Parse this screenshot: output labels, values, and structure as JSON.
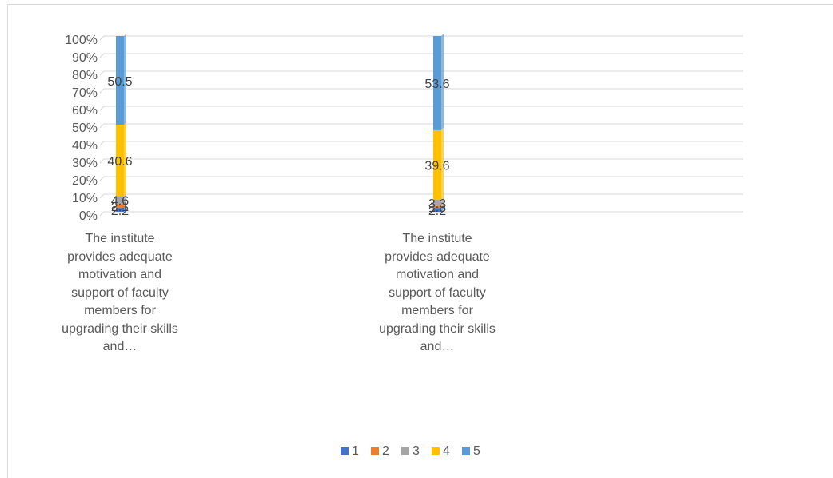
{
  "chart_data": {
    "type": "stacked_bar",
    "categories": [
      "The institute provides adequate motivation and support of faculty members for upgrading their skills and…",
      "The institute provides adequate motivation and support of faculty members for upgrading their skills and…"
    ],
    "series": [
      {
        "name": "1",
        "color": "#4472c4",
        "values": [
          2.2,
          2.2
        ]
      },
      {
        "name": "2",
        "color": "#ed7d31",
        "values": [
          2.1,
          1.3
        ]
      },
      {
        "name": "3",
        "color": "#a5a5a5",
        "values": [
          4.6,
          3.3
        ]
      },
      {
        "name": "4",
        "color": "#ffc000",
        "values": [
          40.6,
          39.6
        ]
      },
      {
        "name": "5",
        "color": "#5b9bd5",
        "values": [
          50.5,
          53.6
        ]
      }
    ],
    "ylim": [
      0,
      100
    ],
    "yticks": [
      {
        "value": 0,
        "label": "0%"
      },
      {
        "value": 10,
        "label": "10%"
      },
      {
        "value": 20,
        "label": "20%"
      },
      {
        "value": 30,
        "label": "30%"
      },
      {
        "value": 40,
        "label": "40%"
      },
      {
        "value": 50,
        "label": "50%"
      },
      {
        "value": 60,
        "label": "60%"
      },
      {
        "value": 70,
        "label": "70%"
      },
      {
        "value": 80,
        "label": "80%"
      },
      {
        "value": 90,
        "label": "90%"
      },
      {
        "value": 100,
        "label": "100%"
      }
    ],
    "grid": true,
    "legend": "bottom"
  }
}
